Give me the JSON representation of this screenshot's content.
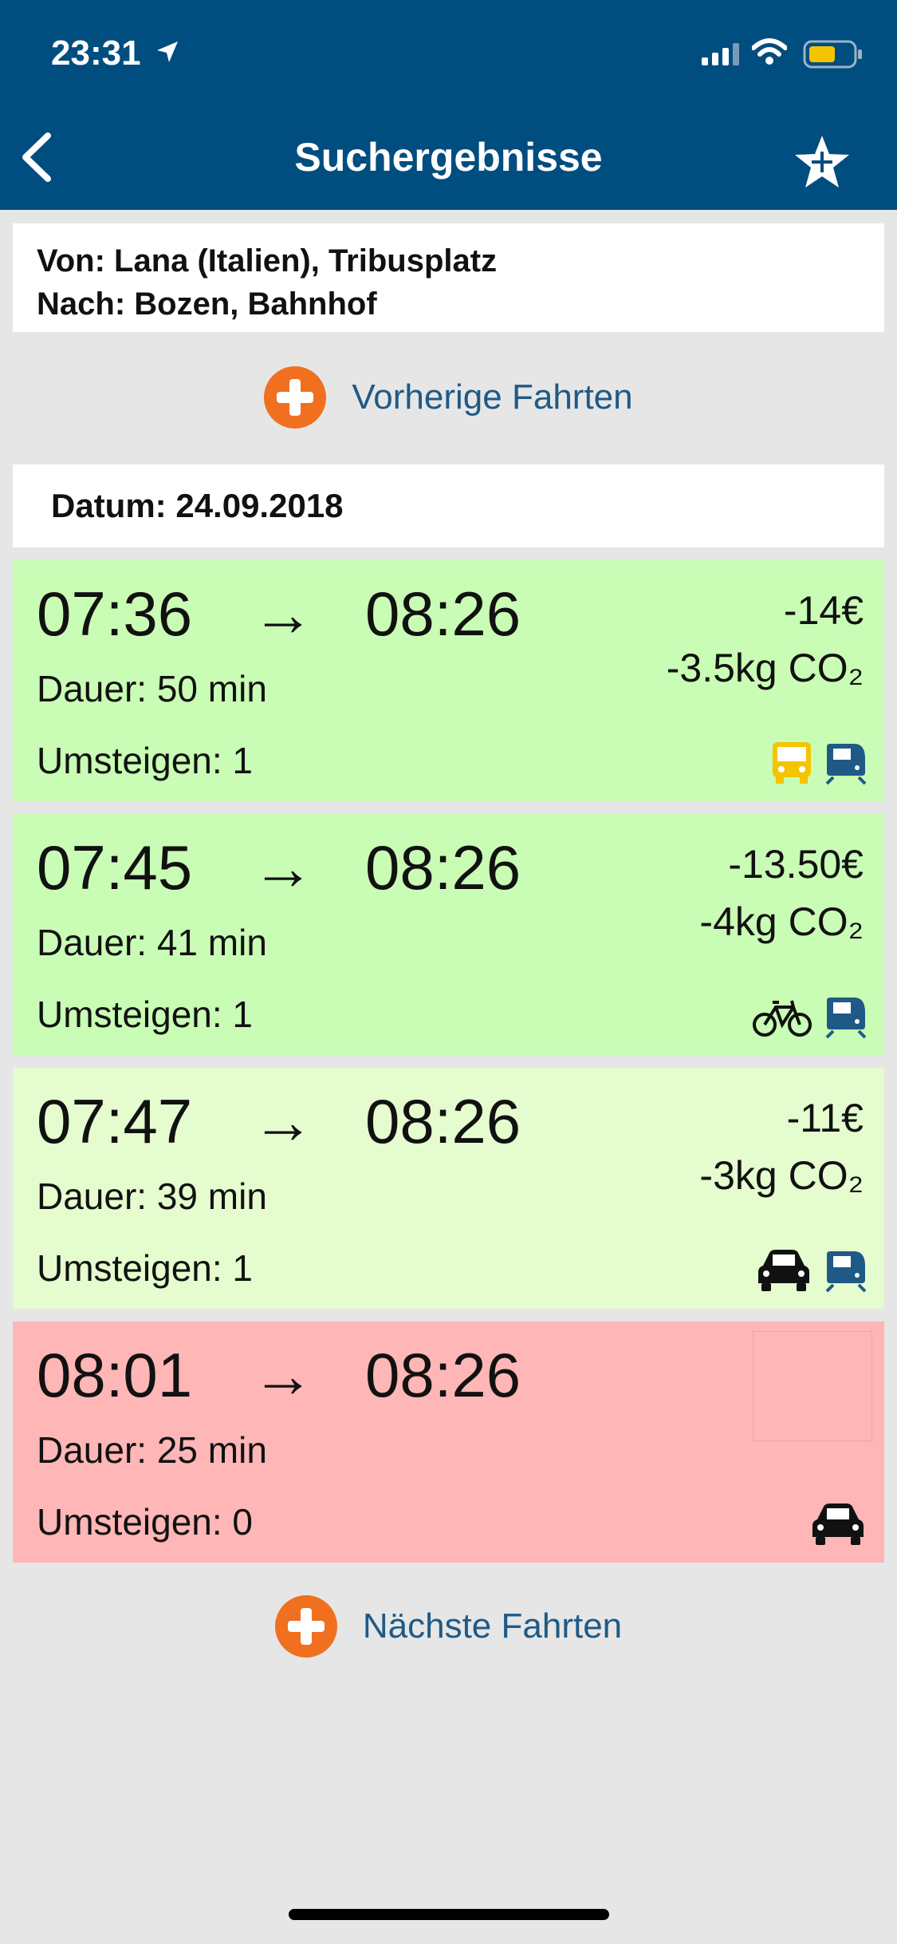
{
  "status_bar": {
    "time": "23:31"
  },
  "nav": {
    "title": "Suchergebnisse"
  },
  "route": {
    "from": "Von: Lana (Italien), Tribusplatz",
    "to": "Nach: Bozen, Bahnhof"
  },
  "previous": {
    "label": "Vorherige Fahrten"
  },
  "date": {
    "label": "Datum: 24.09.2018"
  },
  "trips": [
    {
      "dep": "07:36",
      "arr": "08:26",
      "duration": "Dauer: 50 min",
      "transfers": "Umsteigen: 1",
      "saving": "-14€",
      "co2": "-3.5kg CO₂",
      "color": "#c9fcb4",
      "icons": [
        "bus-icon",
        "train-icon"
      ]
    },
    {
      "dep": "07:45",
      "arr": "08:26",
      "duration": "Dauer: 41 min",
      "transfers": "Umsteigen: 1",
      "saving": "-13.50€",
      "co2": "-4kg CO₂",
      "color": "#c9fcb4",
      "icons": [
        "bike-icon",
        "train-icon"
      ]
    },
    {
      "dep": "07:47",
      "arr": "08:26",
      "duration": "Dauer: 39 min",
      "transfers": "Umsteigen: 1",
      "saving": "-11€",
      "co2": "-3kg CO₂",
      "color": "#e5fccf",
      "icons": [
        "car-icon",
        "train-icon"
      ]
    },
    {
      "dep": "08:01",
      "arr": "08:26",
      "duration": "Dauer: 25 min",
      "transfers": "Umsteigen: 0",
      "saving": "",
      "co2": "",
      "color": "#ffb6b6",
      "icons": [
        "car-icon"
      ]
    }
  ],
  "arrow": "→",
  "next": {
    "label": "Nächste Fahrten"
  },
  "colors": {
    "header": "#004d80",
    "accent": "#f07020",
    "link": "#1f5a86",
    "bus": "#f5c400",
    "train": "#1f5a86"
  }
}
